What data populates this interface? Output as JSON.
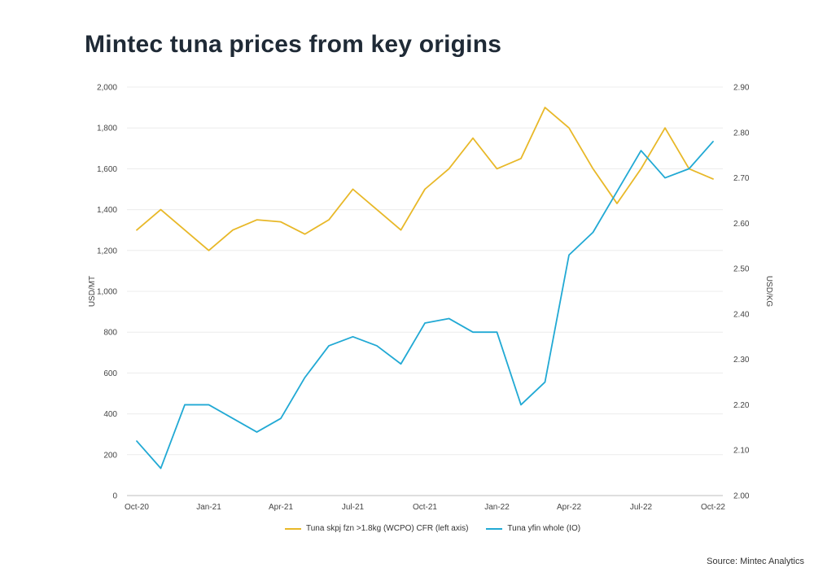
{
  "title": "Mintec tuna prices from key origins",
  "source": "Source: Mintec Analytics",
  "chart_data": {
    "type": "line",
    "x": [
      "Oct-20",
      "Nov-20",
      "Dec-20",
      "Jan-21",
      "Feb-21",
      "Mar-21",
      "Apr-21",
      "May-21",
      "Jun-21",
      "Jul-21",
      "Aug-21",
      "Sep-21",
      "Oct-21",
      "Nov-21",
      "Dec-21",
      "Jan-22",
      "Feb-22",
      "Mar-22",
      "Apr-22",
      "May-22",
      "Jun-22",
      "Jul-22",
      "Aug-22",
      "Sep-22",
      "Oct-22"
    ],
    "x_tick_labels": [
      "Oct-20",
      "Jan-21",
      "Apr-21",
      "Jul-21",
      "Oct-21",
      "Jan-22",
      "Apr-22",
      "Jul-22",
      "Oct-22"
    ],
    "ylabel_left": "USD/MT",
    "ylabel_right": "USD/KG",
    "ylim_left": [
      0,
      2000
    ],
    "ylim_right": [
      2.0,
      2.9
    ],
    "left_ticks": [
      "0",
      "200",
      "400",
      "600",
      "800",
      "1,000",
      "1,200",
      "1,400",
      "1,600",
      "1,800",
      "2,000"
    ],
    "right_ticks": [
      "2.00",
      "2.10",
      "2.20",
      "2.30",
      "2.40",
      "2.50",
      "2.60",
      "2.70",
      "2.80",
      "2.90"
    ],
    "grid": true,
    "legend_position": "bottom",
    "series": [
      {
        "name": "Tuna skpj fzn >1.8kg (WCPO) CFR (left axis)",
        "axis": "left",
        "color": "#e8b828",
        "values": [
          1300,
          1400,
          1300,
          1200,
          1300,
          1350,
          1340,
          1280,
          1350,
          1500,
          1400,
          1300,
          1500,
          1600,
          1750,
          1600,
          1650,
          1900,
          1800,
          1600,
          1430,
          1600,
          1800,
          1600,
          1550
        ]
      },
      {
        "name": "Tuna yfin whole (IO)",
        "axis": "right",
        "color": "#21a9d4",
        "values": [
          2.12,
          2.06,
          2.2,
          2.2,
          2.17,
          2.14,
          2.17,
          2.26,
          2.33,
          2.35,
          2.33,
          2.29,
          2.38,
          2.39,
          2.36,
          2.36,
          2.2,
          2.25,
          2.53,
          2.58,
          2.67,
          2.76,
          2.7,
          2.72,
          2.78
        ]
      }
    ]
  }
}
